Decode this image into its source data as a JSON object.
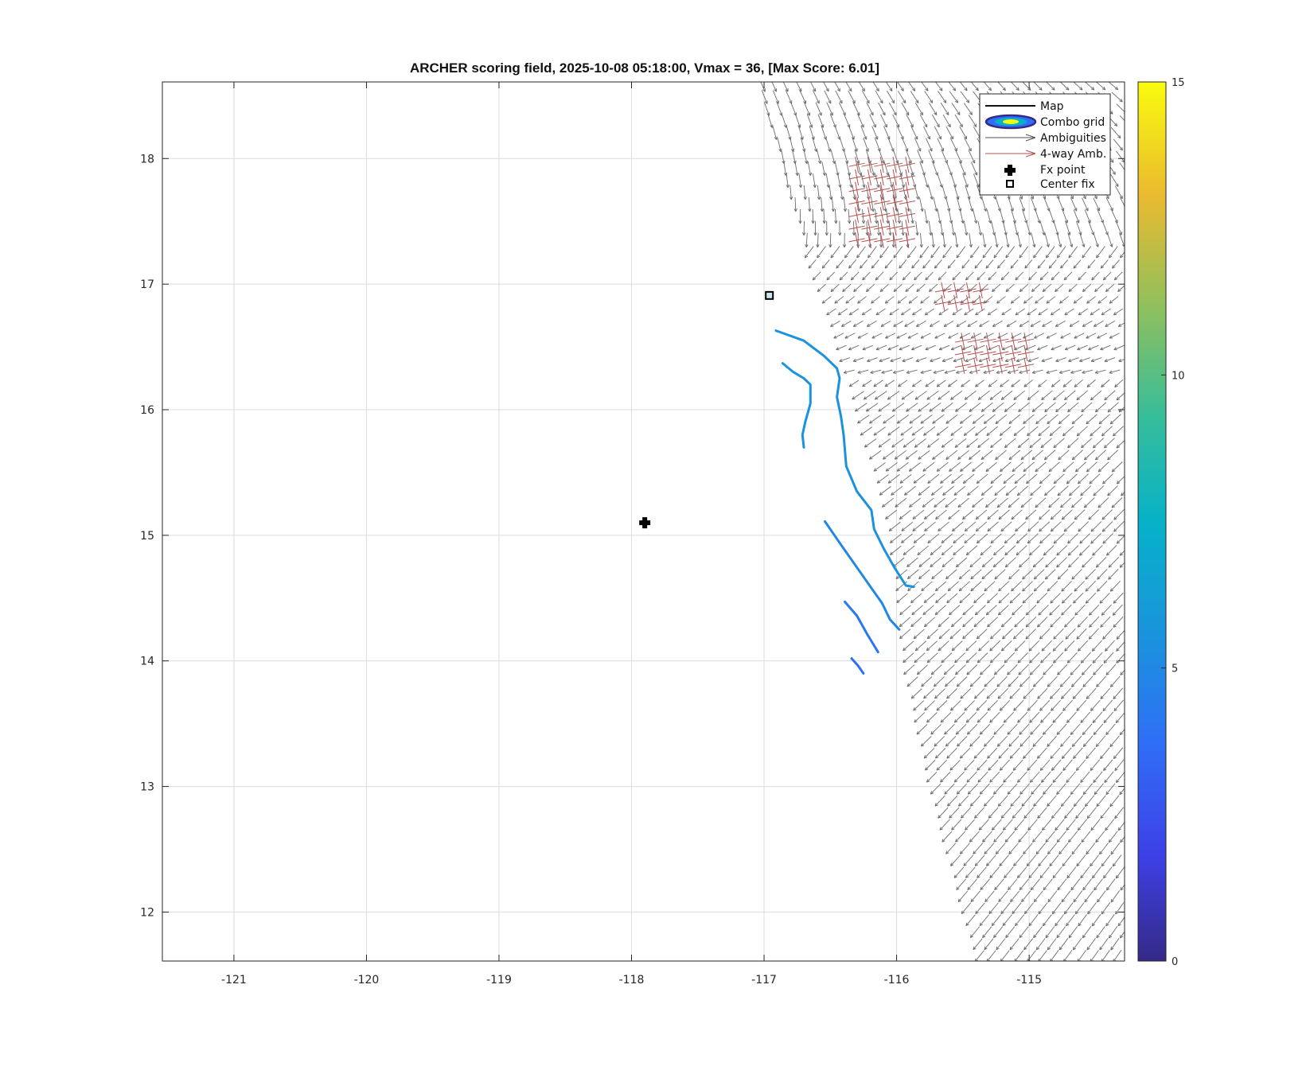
{
  "chart_data": {
    "type": "scatter",
    "title": "ARCHER scoring field, 2025-10-08 05:18:00, Vmax = 36, [Max Score: 6.01]",
    "xlabel": "",
    "ylabel": "",
    "xlim": [
      -121.54,
      -114.28
    ],
    "ylim": [
      11.61,
      18.61
    ],
    "xticks": [
      -121,
      -120,
      -119,
      -118,
      -117,
      -116,
      -115
    ],
    "yticks": [
      12,
      13,
      14,
      15,
      16,
      17,
      18
    ],
    "xtick_labels": [
      "-121",
      "-120",
      "-119",
      "-118",
      "-117",
      "-116",
      "-115"
    ],
    "ytick_labels": [
      "12",
      "13",
      "14",
      "15",
      "16",
      "17",
      "18"
    ],
    "grid": true,
    "legend_position": "top-right",
    "legend": [
      {
        "key": "map",
        "label": "Map"
      },
      {
        "key": "combo",
        "label": "Combo grid"
      },
      {
        "key": "amb",
        "label": "Ambiguities"
      },
      {
        "key": "amb4",
        "label": "4-way Amb."
      },
      {
        "key": "fx",
        "label": "Fx point"
      },
      {
        "key": "center",
        "label": "Center fix"
      }
    ],
    "colorbar": {
      "min": 0,
      "max": 15,
      "ticks": [
        0,
        5,
        10,
        15
      ],
      "tick_labels": [
        "0",
        "5",
        "10",
        "15"
      ],
      "colormap": "parula"
    },
    "fx_point": {
      "x": -117.9,
      "y": 15.1
    },
    "center_fix": {
      "x": -116.96,
      "y": 16.91
    },
    "score_contours": [
      {
        "level": 5.5,
        "points": [
          [
            -116.91,
            16.63
          ],
          [
            -116.7,
            16.55
          ],
          [
            -116.55,
            16.43
          ],
          [
            -116.45,
            16.33
          ],
          [
            -116.43,
            16.25
          ],
          [
            -116.45,
            16.1
          ],
          [
            -116.42,
            15.95
          ],
          [
            -116.4,
            15.8
          ],
          [
            -116.38,
            15.55
          ],
          [
            -116.3,
            15.35
          ],
          [
            -116.19,
            15.2
          ],
          [
            -116.17,
            15.05
          ],
          [
            -116.1,
            14.9
          ],
          [
            -116.02,
            14.75
          ],
          [
            -115.93,
            14.6
          ],
          [
            -115.87,
            14.59
          ]
        ]
      },
      {
        "level": 5.5,
        "points": [
          [
            -116.86,
            16.37
          ],
          [
            -116.78,
            16.3
          ],
          [
            -116.7,
            16.25
          ],
          [
            -116.65,
            16.2
          ],
          [
            -116.65,
            16.05
          ],
          [
            -116.69,
            15.9
          ],
          [
            -116.71,
            15.8
          ],
          [
            -116.7,
            15.7
          ]
        ]
      },
      {
        "level": 5.0,
        "points": [
          [
            -116.54,
            15.11
          ],
          [
            -116.43,
            14.94
          ],
          [
            -116.31,
            14.76
          ],
          [
            -116.19,
            14.58
          ],
          [
            -116.11,
            14.46
          ],
          [
            -116.05,
            14.33
          ],
          [
            -115.98,
            14.25
          ]
        ]
      },
      {
        "level": 4.2,
        "points": [
          [
            -116.39,
            14.47
          ],
          [
            -116.3,
            14.36
          ],
          [
            -116.22,
            14.21
          ],
          [
            -116.14,
            14.07
          ]
        ]
      },
      {
        "level": 3.8,
        "points": [
          [
            -116.34,
            14.02
          ],
          [
            -116.29,
            13.96
          ],
          [
            -116.25,
            13.9
          ]
        ]
      }
    ],
    "wind_region": {
      "description_only": false,
      "west_edge": [
        [
          18.61,
          -117.07
        ],
        [
          17.8,
          -116.85
        ],
        [
          17.0,
          -116.62
        ],
        [
          16.6,
          -116.48
        ],
        [
          15.8,
          -116.25
        ],
        [
          15.2,
          -116.08
        ],
        [
          14.6,
          -116.0
        ],
        [
          14.0,
          -115.95
        ],
        [
          13.0,
          -115.75
        ],
        [
          12.2,
          -115.55
        ],
        [
          11.61,
          -115.4
        ]
      ],
      "four_way_patches": [
        {
          "x": [
            -116.3,
            -115.85
          ],
          "y": [
            17.35,
            18.05
          ]
        },
        {
          "x": [
            -115.65,
            -115.3
          ],
          "y": [
            16.85,
            17.05
          ]
        },
        {
          "x": [
            -115.5,
            -114.95
          ],
          "y": [
            16.35,
            16.65
          ]
        }
      ]
    }
  }
}
